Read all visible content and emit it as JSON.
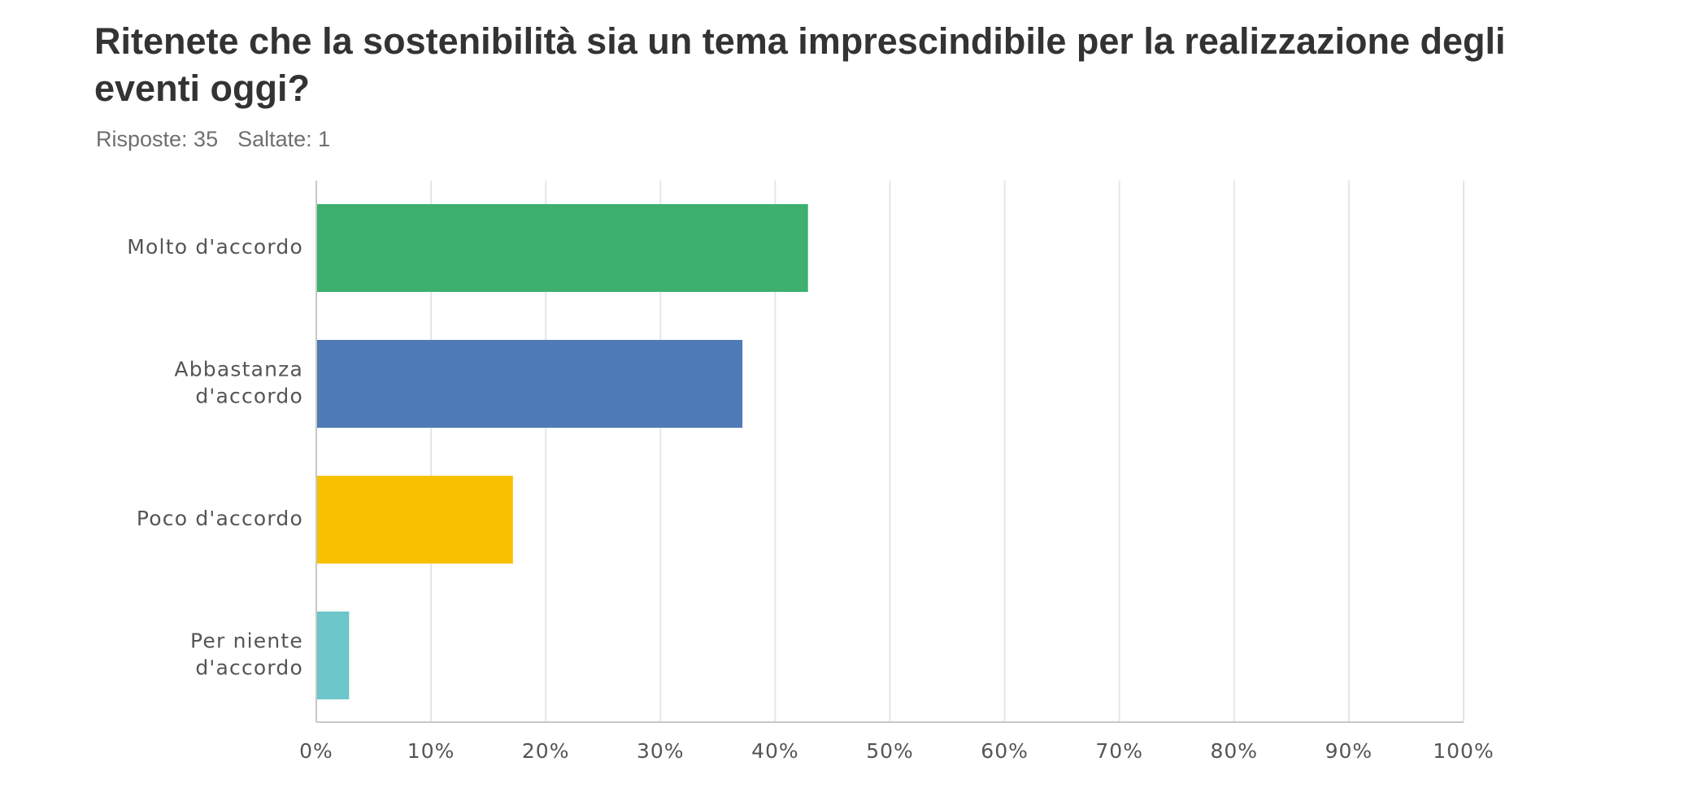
{
  "question": {
    "title": "Ritenete che la sostenibilità sia un tema imprescindibile per la realizzazione degli eventi oggi?",
    "responses_label": "Risposte: 35",
    "skipped_label": "Saltate: 1"
  },
  "chart_data": {
    "type": "bar",
    "orientation": "horizontal",
    "categories": [
      [
        "Molto d'accordo"
      ],
      [
        "Abbastanza",
        "d'accordo"
      ],
      [
        "Poco d'accordo"
      ],
      [
        "Per niente",
        "d'accordo"
      ]
    ],
    "values": [
      42.86,
      37.14,
      17.14,
      2.86
    ],
    "colors": [
      "#3db06f",
      "#4e7bb5",
      "#f7c000",
      "#6dc6c9"
    ],
    "xlim": [
      0,
      100
    ],
    "xticks": [
      0,
      10,
      20,
      30,
      40,
      50,
      60,
      70,
      80,
      90,
      100
    ],
    "tick_labels": [
      "0%",
      "10%",
      "20%",
      "30%",
      "40%",
      "50%",
      "60%",
      "70%",
      "80%",
      "90%",
      "100%"
    ],
    "grid": true
  }
}
